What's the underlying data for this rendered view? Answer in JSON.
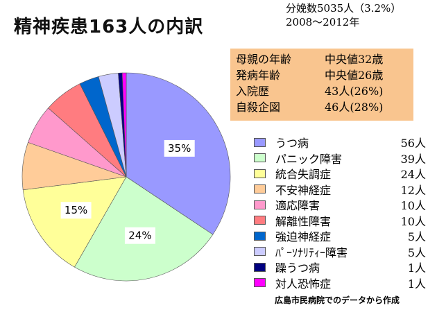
{
  "title": "精神疾患163人の内訳",
  "meta": {
    "line1": "分娩数5035人（3.2%）",
    "line2": "2008～2012年"
  },
  "info": [
    {
      "k": "母親の年齢",
      "v": "中央値32歳"
    },
    {
      "k": "発病年齢",
      "v": "中央値26歳"
    },
    {
      "k": "入院歴",
      "v": "43人(26%)"
    },
    {
      "k": "自殺企図",
      "v": "46人(28%)"
    }
  ],
  "source": "広島市民病院でのデータから作成",
  "chart_data": {
    "type": "pie",
    "total": 163,
    "categories": [
      "うつ病",
      "パニック障害",
      "統合失調症",
      "不安神経症",
      "適応障害",
      "解離性障害",
      "強迫神経症",
      "ﾊﾟｰｿﾅﾘﾃｨｰ障害",
      "躁うつ病",
      "対人恐怖症"
    ],
    "values": [
      56,
      39,
      24,
      12,
      10,
      10,
      5,
      5,
      1,
      1
    ],
    "count_labels": [
      "56人",
      "39人",
      "24人",
      "12人",
      "10人",
      "10人",
      "5人",
      "5人",
      "1人",
      "1人"
    ],
    "colors": [
      "#9999ff",
      "#ccffcc",
      "#ffff99",
      "#ffcc99",
      "#ff99cc",
      "#ff7c80",
      "#0066cc",
      "#ccccff",
      "#000080",
      "#ff00ff"
    ],
    "data_labels": [
      {
        "index": 0,
        "text": "35%"
      },
      {
        "index": 1,
        "text": "24%"
      },
      {
        "index": 2,
        "text": "15%"
      }
    ]
  }
}
